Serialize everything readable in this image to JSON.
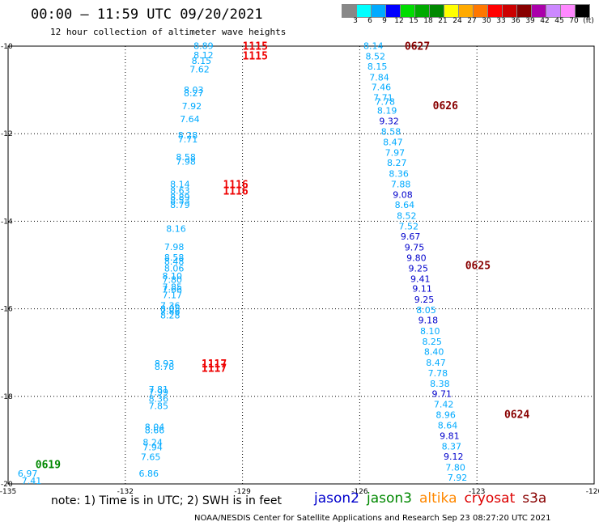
{
  "header": {
    "title": "00:00 — 11:59 UTC 09/20/2021",
    "subtitle": "12 hour collection of altimeter wave heights"
  },
  "legend": {
    "colors": [
      "#888888",
      "#00ffff",
      "#00aaff",
      "#0000ff",
      "#00dd00",
      "#00aa00",
      "#008800",
      "#ffff00",
      "#ffaa00",
      "#ff7700",
      "#ff0000",
      "#cc0000",
      "#880000",
      "#aa00aa",
      "#cc88ff",
      "#ff88ff",
      "#000000"
    ],
    "labels": [
      "3",
      "6",
      "9",
      "12",
      "15",
      "18",
      "21",
      "24",
      "27",
      "30",
      "33",
      "36",
      "39",
      "42",
      "45",
      "70",
      "(ft)"
    ]
  },
  "axes": {
    "lon_ticks": [
      -135,
      -132,
      -129,
      -126,
      -123,
      -120
    ],
    "lat_ticks": [
      -10,
      -12,
      -14,
      -16,
      -18,
      -20
    ]
  },
  "note": "note: 1) Time is in UTC; 2) SWH is in feet",
  "satellites": [
    {
      "name": "jason2",
      "color": "#0000cc"
    },
    {
      "name": "jason3",
      "color": "#008800"
    },
    {
      "name": "altika",
      "color": "#ff8800"
    },
    {
      "name": "cryosat",
      "color": "#dd0000"
    },
    {
      "name": "s3a",
      "color": "#880000"
    }
  ],
  "footer": "NOAA/NESDIS Center for Satellite Applications and Research    Sep 23 08:27:20 UTC 2021",
  "track_labels": [
    {
      "text": "1115",
      "lon": -129.0,
      "lat": -9.99,
      "color": "#ee0000"
    },
    {
      "text": "1115",
      "lon": -129.0,
      "lat": -10.21,
      "color": "#ee0000"
    },
    {
      "text": "1116",
      "lon": -129.5,
      "lat": -13.15,
      "color": "#ee0000"
    },
    {
      "text": "1116",
      "lon": -129.5,
      "lat": -13.3,
      "color": "#ee0000"
    },
    {
      "text": "1117",
      "lon": -130.05,
      "lat": -17.25,
      "color": "#ee0000"
    },
    {
      "text": "1117",
      "lon": -130.05,
      "lat": -17.35,
      "color": "#ee0000"
    },
    {
      "text": "0627",
      "lon": -124.85,
      "lat": -9.99,
      "color": "#880000"
    },
    {
      "text": "0626",
      "lon": -124.13,
      "lat": -11.35,
      "color": "#880000"
    },
    {
      "text": "0625",
      "lon": -123.3,
      "lat": -15.0,
      "color": "#880000"
    },
    {
      "text": "0624",
      "lon": -122.3,
      "lat": -18.4,
      "color": "#880000"
    },
    {
      "text": "0619",
      "lon": -134.3,
      "lat": -19.55,
      "color": "#008800"
    }
  ],
  "observations": [
    {
      "lon": -130.0,
      "lat": -9.99,
      "swh": "8.89",
      "color": "#00aaff"
    },
    {
      "lon": -130.0,
      "lat": -10.2,
      "swh": "8.12",
      "color": "#00aaff"
    },
    {
      "lon": -130.05,
      "lat": -10.33,
      "swh": "8.15",
      "color": "#00aaff"
    },
    {
      "lon": -130.1,
      "lat": -10.53,
      "swh": "7.62",
      "color": "#00aaff"
    },
    {
      "lon": -130.25,
      "lat": -11.0,
      "swh": "8.03",
      "color": "#00aaff"
    },
    {
      "lon": -130.25,
      "lat": -11.07,
      "swh": "8.27",
      "color": "#00aaff"
    },
    {
      "lon": -130.3,
      "lat": -11.37,
      "swh": "7.92",
      "color": "#00aaff"
    },
    {
      "lon": -130.35,
      "lat": -11.66,
      "swh": "7.64",
      "color": "#00aaff"
    },
    {
      "lon": -130.4,
      "lat": -12.03,
      "swh": "8.28",
      "color": "#00aaff"
    },
    {
      "lon": -130.4,
      "lat": -12.13,
      "swh": "7.71",
      "color": "#00aaff"
    },
    {
      "lon": -130.45,
      "lat": -12.53,
      "swh": "8.58",
      "color": "#00aaff"
    },
    {
      "lon": -130.45,
      "lat": -12.63,
      "swh": "7.98",
      "color": "#00aaff"
    },
    {
      "lon": -130.6,
      "lat": -13.15,
      "swh": "8.14",
      "color": "#00aaff"
    },
    {
      "lon": -130.6,
      "lat": -13.3,
      "swh": "8.63",
      "color": "#00aaff"
    },
    {
      "lon": -130.6,
      "lat": -13.45,
      "swh": "8.89",
      "color": "#00aaff"
    },
    {
      "lon": -130.6,
      "lat": -13.52,
      "swh": "8.53",
      "color": "#00aaff"
    },
    {
      "lon": -130.6,
      "lat": -13.62,
      "swh": "8.79",
      "color": "#00aaff"
    },
    {
      "lon": -130.7,
      "lat": -14.17,
      "swh": "8.16",
      "color": "#00aaff"
    },
    {
      "lon": -130.75,
      "lat": -14.58,
      "swh": "7.98",
      "color": "#00aaff"
    },
    {
      "lon": -130.75,
      "lat": -14.82,
      "swh": "8.58",
      "color": "#00aaff"
    },
    {
      "lon": -130.75,
      "lat": -14.92,
      "swh": "8.48",
      "color": "#00aaff"
    },
    {
      "lon": -130.75,
      "lat": -15.07,
      "swh": "8.06",
      "color": "#00aaff"
    },
    {
      "lon": -130.8,
      "lat": -15.25,
      "swh": "8.10",
      "color": "#00aaff"
    },
    {
      "lon": -130.8,
      "lat": -15.33,
      "swh": "7.80",
      "color": "#00aaff"
    },
    {
      "lon": -130.8,
      "lat": -15.5,
      "swh": "7.85",
      "color": "#00aaff"
    },
    {
      "lon": -130.8,
      "lat": -15.55,
      "swh": "7.66",
      "color": "#00aaff"
    },
    {
      "lon": -130.8,
      "lat": -15.68,
      "swh": "7.17",
      "color": "#00aaff"
    },
    {
      "lon": -130.85,
      "lat": -15.92,
      "swh": "7.36",
      "color": "#00aaff"
    },
    {
      "lon": -130.85,
      "lat": -16.0,
      "swh": "8.05",
      "color": "#00aaff"
    },
    {
      "lon": -130.85,
      "lat": -16.05,
      "swh": "7.86",
      "color": "#00aaff"
    },
    {
      "lon": -130.85,
      "lat": -16.15,
      "swh": "8.28",
      "color": "#00aaff"
    },
    {
      "lon": -131.0,
      "lat": -17.25,
      "swh": "8.93",
      "color": "#00aaff"
    },
    {
      "lon": -131.0,
      "lat": -17.32,
      "swh": "8.78",
      "color": "#00aaff"
    },
    {
      "lon": -131.15,
      "lat": -17.84,
      "swh": "7.81",
      "color": "#00aaff"
    },
    {
      "lon": -131.15,
      "lat": -17.9,
      "swh": "7.99",
      "color": "#00aaff"
    },
    {
      "lon": -131.15,
      "lat": -18.05,
      "swh": "8.36",
      "color": "#00aaff"
    },
    {
      "lon": -131.15,
      "lat": -18.22,
      "swh": "7.85",
      "color": "#00aaff"
    },
    {
      "lon": -131.25,
      "lat": -18.7,
      "swh": "8.04",
      "color": "#00aaff"
    },
    {
      "lon": -131.25,
      "lat": -18.77,
      "swh": "8.66",
      "color": "#00aaff"
    },
    {
      "lon": -131.3,
      "lat": -19.05,
      "swh": "8.24",
      "color": "#00aaff"
    },
    {
      "lon": -131.3,
      "lat": -19.16,
      "swh": "7.94",
      "color": "#00aaff"
    },
    {
      "lon": -131.35,
      "lat": -19.38,
      "swh": "7.65",
      "color": "#00aaff"
    },
    {
      "lon": -131.4,
      "lat": -19.76,
      "swh": "6.86",
      "color": "#00aaff"
    },
    {
      "lon": -134.5,
      "lat": -19.76,
      "swh": "6.97",
      "color": "#00aaff"
    },
    {
      "lon": -134.4,
      "lat": -19.93,
      "swh": "7.41",
      "color": "#00aaff"
    },
    {
      "lon": -125.65,
      "lat": -9.99,
      "swh": "8.14",
      "color": "#00aaff"
    },
    {
      "lon": -125.6,
      "lat": -10.23,
      "swh": "8.52",
      "color": "#00aaff"
    },
    {
      "lon": -125.55,
      "lat": -10.46,
      "swh": "8.15",
      "color": "#00aaff"
    },
    {
      "lon": -125.5,
      "lat": -10.71,
      "swh": "7.84",
      "color": "#00aaff"
    },
    {
      "lon": -125.45,
      "lat": -10.93,
      "swh": "7.46",
      "color": "#00aaff"
    },
    {
      "lon": -125.4,
      "lat": -11.17,
      "swh": "7.71",
      "color": "#00aaff"
    },
    {
      "lon": -125.35,
      "lat": -11.27,
      "swh": "7.78",
      "color": "#00aaff"
    },
    {
      "lon": -125.3,
      "lat": -11.47,
      "swh": "8.19",
      "color": "#00aaff"
    },
    {
      "lon": -125.25,
      "lat": -11.71,
      "swh": "9.32",
      "color": "#0000cc"
    },
    {
      "lon": -125.2,
      "lat": -11.95,
      "swh": "8.58",
      "color": "#00aaff"
    },
    {
      "lon": -125.15,
      "lat": -12.19,
      "swh": "8.47",
      "color": "#00aaff"
    },
    {
      "lon": -125.1,
      "lat": -12.43,
      "swh": "7.97",
      "color": "#00aaff"
    },
    {
      "lon": -125.05,
      "lat": -12.66,
      "swh": "8.27",
      "color": "#00aaff"
    },
    {
      "lon": -125.0,
      "lat": -12.91,
      "swh": "8.36",
      "color": "#00aaff"
    },
    {
      "lon": -124.95,
      "lat": -13.15,
      "swh": "7.88",
      "color": "#00aaff"
    },
    {
      "lon": -124.9,
      "lat": -13.39,
      "swh": "9.08",
      "color": "#0000cc"
    },
    {
      "lon": -124.85,
      "lat": -13.62,
      "swh": "8.64",
      "color": "#00aaff"
    },
    {
      "lon": -124.8,
      "lat": -13.87,
      "swh": "8.52",
      "color": "#00aaff"
    },
    {
      "lon": -124.75,
      "lat": -14.11,
      "swh": "7.52",
      "color": "#00aaff"
    },
    {
      "lon": -124.7,
      "lat": -14.34,
      "swh": "9.67",
      "color": "#0000cc"
    },
    {
      "lon": -124.6,
      "lat": -14.59,
      "swh": "9.75",
      "color": "#0000cc"
    },
    {
      "lon": -124.55,
      "lat": -14.83,
      "swh": "9.80",
      "color": "#0000cc"
    },
    {
      "lon": -124.5,
      "lat": -15.07,
      "swh": "9.25",
      "color": "#0000cc"
    },
    {
      "lon": -124.45,
      "lat": -15.31,
      "swh": "9.41",
      "color": "#0000cc"
    },
    {
      "lon": -124.4,
      "lat": -15.54,
      "swh": "9.11",
      "color": "#0000cc"
    },
    {
      "lon": -124.35,
      "lat": -15.79,
      "swh": "9.25",
      "color": "#0000cc"
    },
    {
      "lon": -124.3,
      "lat": -16.03,
      "swh": "8.05",
      "color": "#00aaff"
    },
    {
      "lon": -124.25,
      "lat": -16.26,
      "swh": "9.18",
      "color": "#0000cc"
    },
    {
      "lon": -124.2,
      "lat": -16.51,
      "swh": "8.10",
      "color": "#00aaff"
    },
    {
      "lon": -124.15,
      "lat": -16.75,
      "swh": "8.25",
      "color": "#00aaff"
    },
    {
      "lon": -124.1,
      "lat": -16.98,
      "swh": "8.40",
      "color": "#00aaff"
    },
    {
      "lon": -124.05,
      "lat": -17.23,
      "swh": "8.47",
      "color": "#00aaff"
    },
    {
      "lon": -124.0,
      "lat": -17.47,
      "swh": "7.78",
      "color": "#00aaff"
    },
    {
      "lon": -123.95,
      "lat": -17.71,
      "swh": "8.38",
      "color": "#00aaff"
    },
    {
      "lon": -123.9,
      "lat": -17.94,
      "swh": "9.71",
      "color": "#0000cc"
    },
    {
      "lon": -123.85,
      "lat": -18.18,
      "swh": "7.42",
      "color": "#00aaff"
    },
    {
      "lon": -123.8,
      "lat": -18.42,
      "swh": "8.96",
      "color": "#00aaff"
    },
    {
      "lon": -123.75,
      "lat": -18.66,
      "swh": "8.64",
      "color": "#00aaff"
    },
    {
      "lon": -123.7,
      "lat": -18.9,
      "swh": "9.81",
      "color": "#0000cc"
    },
    {
      "lon": -123.65,
      "lat": -19.14,
      "swh": "8.37",
      "color": "#00aaff"
    },
    {
      "lon": -123.6,
      "lat": -19.37,
      "swh": "9.12",
      "color": "#0000cc"
    },
    {
      "lon": -123.55,
      "lat": -19.62,
      "swh": "7.80",
      "color": "#00aaff"
    },
    {
      "lon": -123.5,
      "lat": -19.85,
      "swh": "7.92",
      "color": "#00aaff"
    }
  ]
}
